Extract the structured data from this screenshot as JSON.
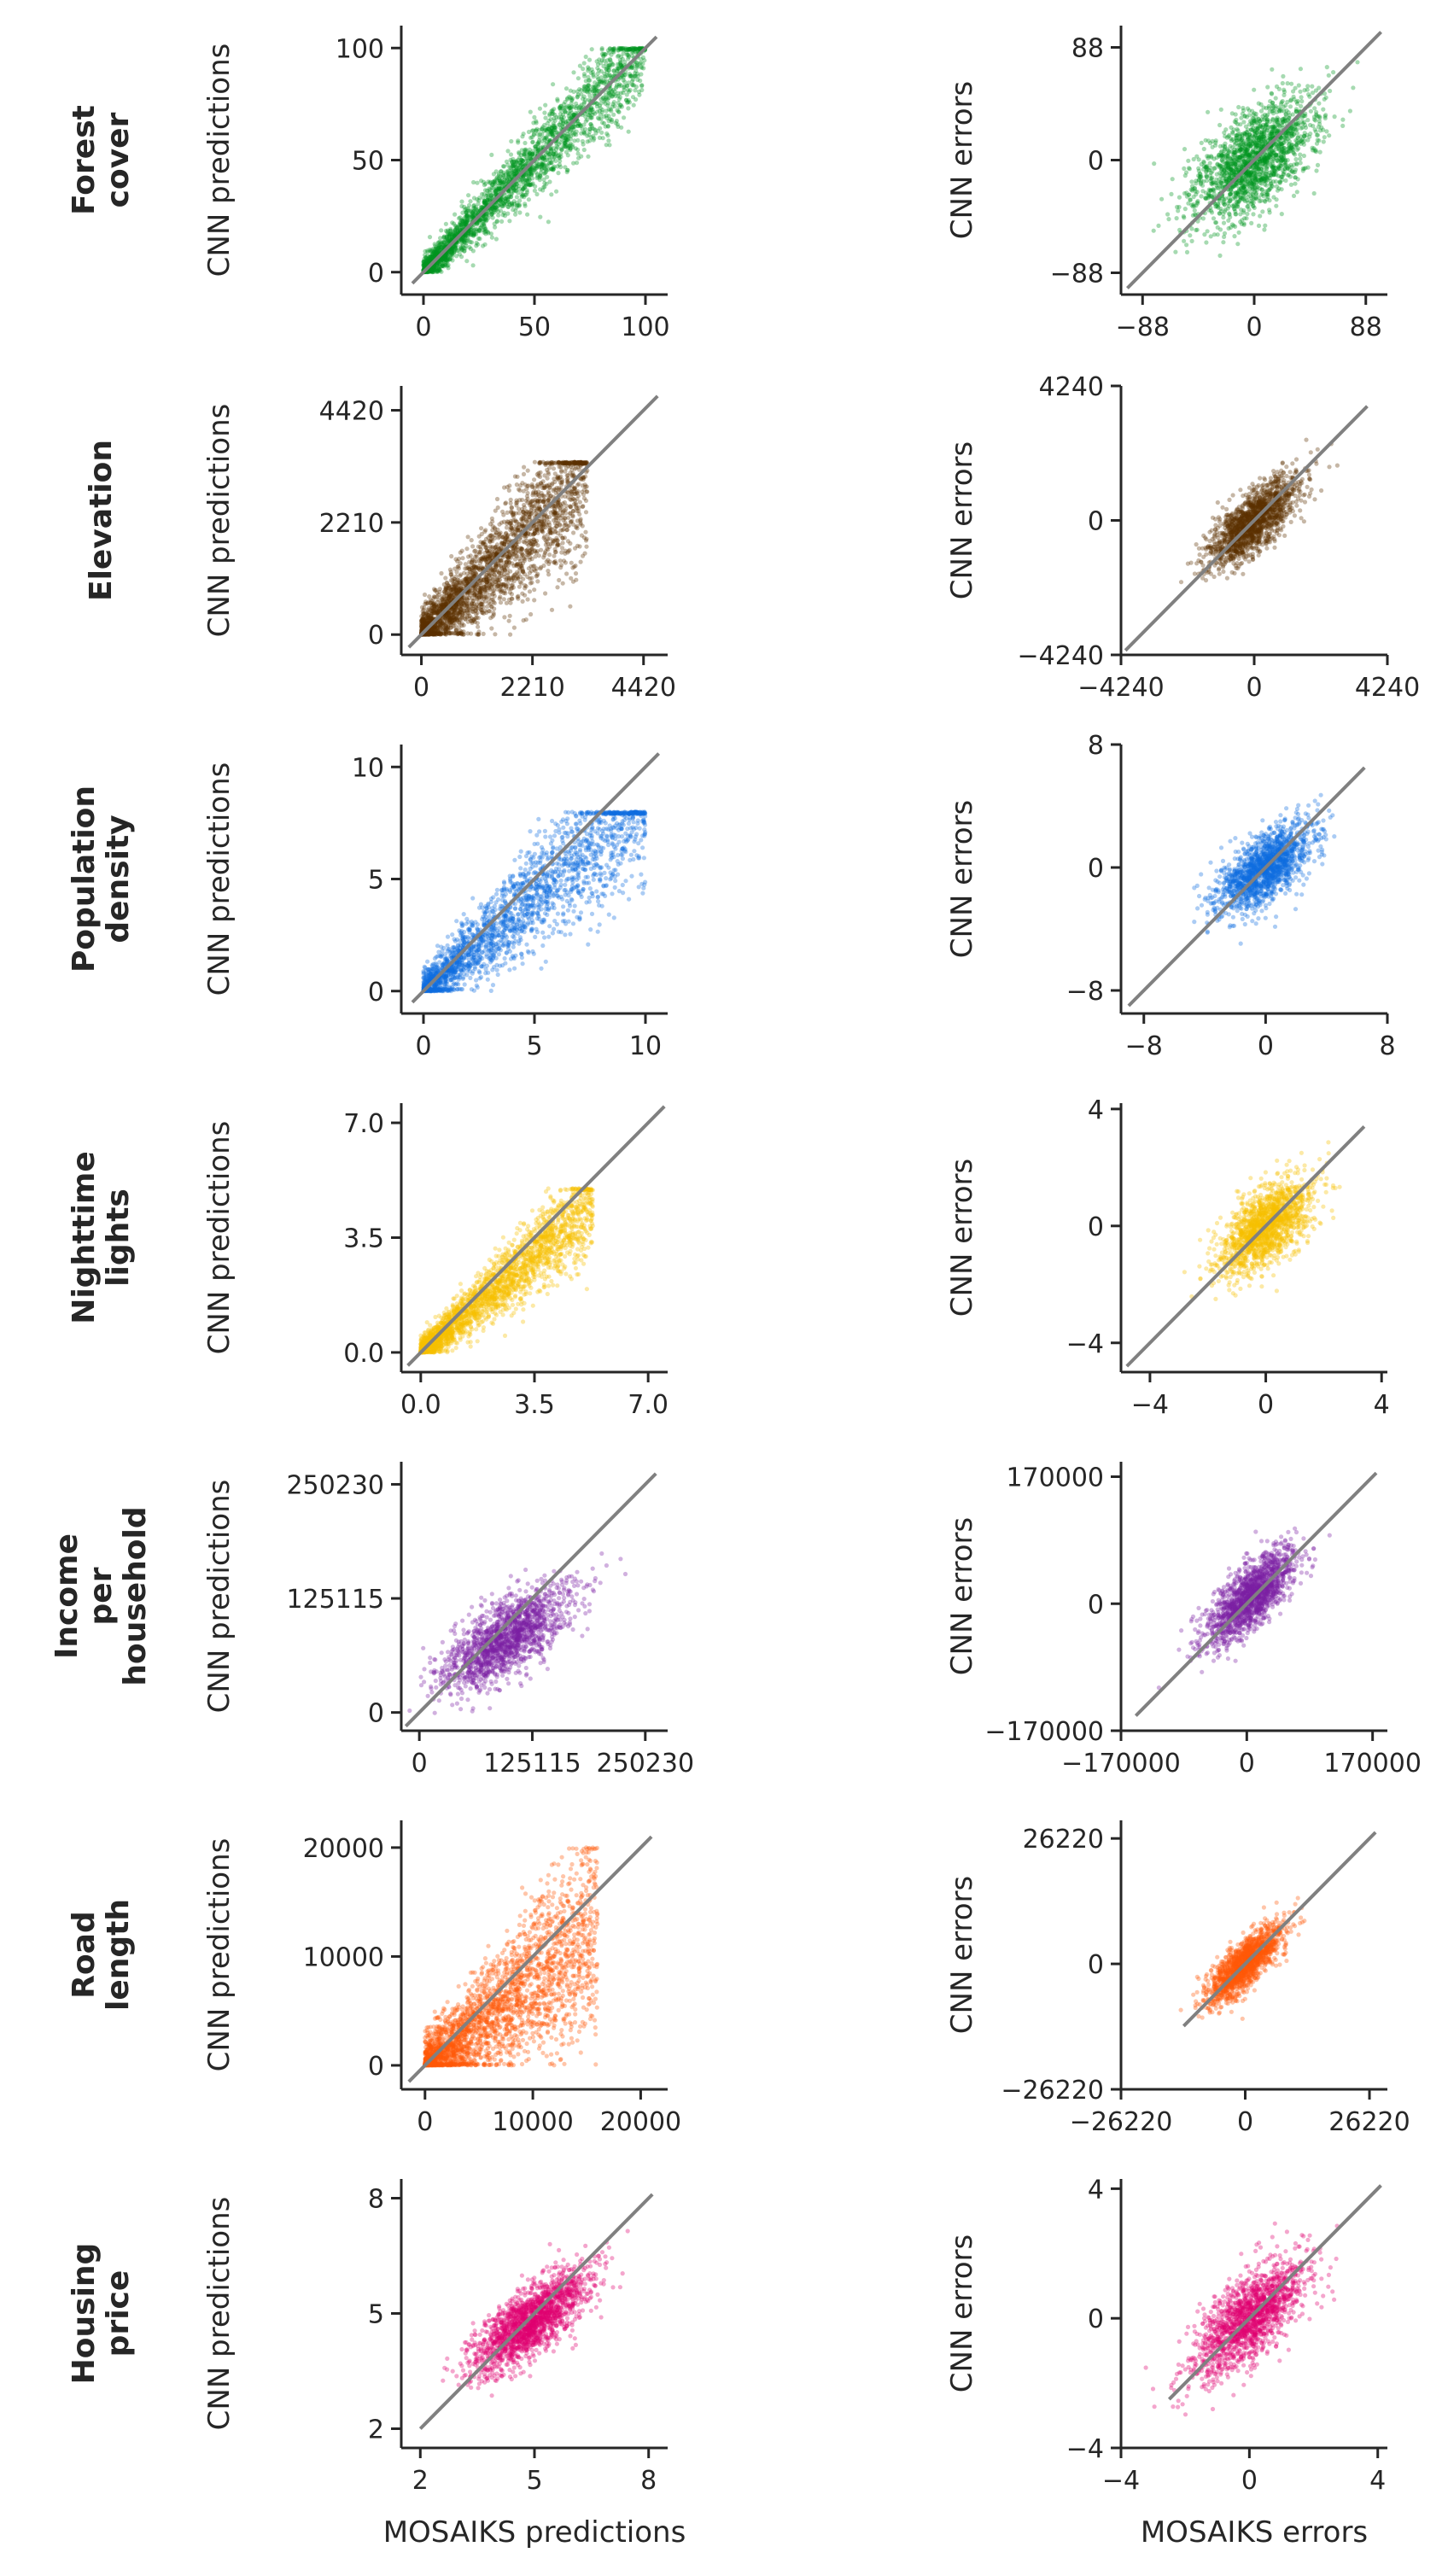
{
  "figure": {
    "xlabel_left": "MOSAIKS predictions",
    "xlabel_right": "MOSAIKS errors",
    "ylabel_left": "CNN predictions",
    "ylabel_right": "CNN errors"
  },
  "chart_data": [
    {
      "type": "scatter",
      "row_label": [
        "Forest",
        "cover"
      ],
      "color": "#00941f",
      "predictions": {
        "title": "",
        "xlabel": "",
        "ylabel": "CNN predictions",
        "xlim": [
          -10,
          110
        ],
        "ylim": [
          -10,
          110
        ],
        "xticks": [
          0,
          50,
          100
        ],
        "xtick_labels": [
          "0",
          "50",
          "100"
        ],
        "yticks": [
          0,
          50,
          100
        ],
        "ytick_labels": [
          "0",
          "50",
          "100"
        ],
        "ref_line": [
          [
            -5,
            -5
          ],
          [
            105,
            105
          ]
        ],
        "cloud": {
          "type": "fan",
          "x_range": [
            0,
            100
          ],
          "y_range": [
            0,
            100
          ],
          "floor": 0,
          "cap": 100,
          "slope": 1.0,
          "spread": 0.12,
          "n": 2600
        }
      },
      "errors": {
        "title": "",
        "xlabel": "",
        "ylabel": "CNN errors",
        "xlim": [
          -105,
          105
        ],
        "ylim": [
          -105,
          105
        ],
        "xticks": [
          -88,
          0,
          88
        ],
        "xtick_labels": [
          "−88",
          "0",
          "88"
        ],
        "yticks": [
          -88,
          0,
          88
        ],
        "ytick_labels": [
          "−88",
          "0",
          "88"
        ],
        "ref_line": [
          [
            -100,
            -100
          ],
          [
            100,
            100
          ]
        ],
        "cloud": {
          "type": "ellipse",
          "center": [
            0,
            0
          ],
          "sx": 24,
          "sy": 24,
          "corr": 0.6,
          "n": 1800
        }
      }
    },
    {
      "type": "scatter",
      "row_label": [
        "Elevation"
      ],
      "color": "#5c3200",
      "predictions": {
        "title": "",
        "xlabel": "",
        "ylabel": "CNN predictions",
        "xlim": [
          -400,
          4900
        ],
        "ylim": [
          -400,
          4900
        ],
        "xticks": [
          0,
          2210,
          4420
        ],
        "xtick_labels": [
          "0",
          "2210",
          "4420"
        ],
        "yticks": [
          0,
          2210,
          4420
        ],
        "ytick_labels": [
          "0",
          "2210",
          "4420"
        ],
        "ref_line": [
          [
            -250,
            -250
          ],
          [
            4700,
            4700
          ]
        ],
        "cloud": {
          "type": "fan",
          "x_range": [
            0,
            3300
          ],
          "y_range": [
            0,
            3300
          ],
          "floor": 0,
          "cap": 3400,
          "slope": 0.95,
          "spread": 0.25,
          "n": 2600
        }
      },
      "errors": {
        "title": "",
        "xlabel": "",
        "ylabel": "CNN errors",
        "xlim": [
          -4240,
          4240
        ],
        "ylim": [
          -4240,
          4240
        ],
        "xticks": [
          -4240,
          0,
          4240
        ],
        "xtick_labels": [
          "−4240",
          "0",
          "4240"
        ],
        "yticks": [
          -4240,
          0,
          4240
        ],
        "ytick_labels": [
          "−4240",
          "0",
          "4240"
        ],
        "ref_line": [
          [
            -4100,
            -4100
          ],
          [
            3600,
            3600
          ]
        ],
        "cloud": {
          "type": "ellipse",
          "center": [
            0,
            0
          ],
          "sx": 700,
          "sy": 700,
          "corr": 0.75,
          "n": 1600
        }
      }
    },
    {
      "type": "scatter",
      "row_label": [
        "Population",
        "density"
      ],
      "color": "#0d6de0",
      "predictions": {
        "title": "",
        "xlabel": "",
        "ylabel": "CNN predictions",
        "xlim": [
          -1,
          11
        ],
        "ylim": [
          -1,
          11
        ],
        "xticks": [
          0,
          5,
          10
        ],
        "xtick_labels": [
          "0",
          "5",
          "10"
        ],
        "yticks": [
          0,
          5,
          10
        ],
        "ytick_labels": [
          "0",
          "5",
          "10"
        ],
        "ref_line": [
          [
            -0.5,
            -0.5
          ],
          [
            10.6,
            10.6
          ]
        ],
        "cloud": {
          "type": "fan",
          "x_range": [
            0,
            10
          ],
          "y_range": [
            0,
            8
          ],
          "floor": 0,
          "cap": 8,
          "slope": 0.85,
          "spread": 0.18,
          "n": 2200
        }
      },
      "errors": {
        "title": "",
        "xlabel": "",
        "ylabel": "CNN errors",
        "xlim": [
          -9.5,
          8
        ],
        "ylim": [
          -9.5,
          8
        ],
        "xticks": [
          -8,
          0,
          8
        ],
        "xtick_labels": [
          "−8",
          "0",
          "8"
        ],
        "yticks": [
          -8,
          0,
          8
        ],
        "ytick_labels": [
          "−8",
          "0",
          "8"
        ],
        "ref_line": [
          [
            -9,
            -9
          ],
          [
            6.5,
            6.5
          ]
        ],
        "cloud": {
          "type": "ellipse",
          "center": [
            0,
            0
          ],
          "sx": 1.5,
          "sy": 1.4,
          "corr": 0.65,
          "n": 1600
        }
      }
    },
    {
      "type": "scatter",
      "row_label": [
        "Nighttime",
        "lights"
      ],
      "color": "#f7c100",
      "predictions": {
        "title": "",
        "xlabel": "",
        "ylabel": "CNN predictions",
        "xlim": [
          -0.6,
          7.6
        ],
        "ylim": [
          -0.6,
          7.6
        ],
        "xticks": [
          0,
          3.5,
          7
        ],
        "xtick_labels": [
          "0.0",
          "3.5",
          "7.0"
        ],
        "yticks": [
          0,
          3.5,
          7
        ],
        "ytick_labels": [
          "0.0",
          "3.5",
          "7.0"
        ],
        "ref_line": [
          [
            -0.4,
            -0.4
          ],
          [
            7.5,
            7.5
          ]
        ],
        "cloud": {
          "type": "fan",
          "x_range": [
            0,
            5.3
          ],
          "y_range": [
            0,
            5
          ],
          "floor": 0,
          "cap": 5,
          "slope": 0.85,
          "spread": 0.15,
          "n": 2400
        }
      },
      "errors": {
        "title": "",
        "xlabel": "",
        "ylabel": "CNN errors",
        "xlim": [
          -5,
          4.2
        ],
        "ylim": [
          -5,
          4.2
        ],
        "xticks": [
          -4,
          0,
          4
        ],
        "xtick_labels": [
          "−4",
          "0",
          "4"
        ],
        "yticks": [
          -4,
          0,
          4
        ],
        "ytick_labels": [
          "−4",
          "0",
          "4"
        ],
        "ref_line": [
          [
            -4.8,
            -4.8
          ],
          [
            3.4,
            3.4
          ]
        ],
        "cloud": {
          "type": "ellipse",
          "center": [
            0,
            0
          ],
          "sx": 0.8,
          "sy": 0.8,
          "corr": 0.6,
          "n": 1600
        }
      }
    },
    {
      "type": "scatter",
      "row_label": [
        "Income",
        "per",
        "household"
      ],
      "color": "#7b1fa2",
      "predictions": {
        "title": "",
        "xlabel": "",
        "ylabel": "CNN predictions",
        "xlim": [
          -20000,
          275000
        ],
        "ylim": [
          -20000,
          275000
        ],
        "xticks": [
          0,
          125115,
          250230
        ],
        "xtick_labels": [
          "0",
          "125115",
          "250230"
        ],
        "yticks": [
          0,
          125115,
          250230
        ],
        "ytick_labels": [
          "0",
          "125115",
          "250230"
        ],
        "ref_line": [
          [
            -15000,
            -15000
          ],
          [
            262000,
            262000
          ]
        ],
        "cloud": {
          "type": "ellipse",
          "center": [
            95000,
            80000
          ],
          "sx": 35000,
          "sy": 28000,
          "corr": 0.7,
          "n": 1600
        }
      },
      "errors": {
        "title": "",
        "xlabel": "",
        "ylabel": "CNN errors",
        "xlim": [
          -170000,
          190000
        ],
        "ylim": [
          -170000,
          190000
        ],
        "xticks": [
          -170000,
          0,
          170000
        ],
        "xtick_labels": [
          "−170000",
          "0",
          "170000"
        ],
        "yticks": [
          -170000,
          0,
          170000
        ],
        "ytick_labels": [
          "−170000",
          "0",
          "170000"
        ],
        "ref_line": [
          [
            -150000,
            -150000
          ],
          [
            175000,
            175000
          ]
        ],
        "cloud": {
          "type": "ellipse",
          "center": [
            5000,
            10000
          ],
          "sx": 30000,
          "sy": 32000,
          "corr": 0.75,
          "n": 1600
        }
      }
    },
    {
      "type": "scatter",
      "row_label": [
        "Road",
        "length"
      ],
      "color": "#ff5a0a",
      "predictions": {
        "title": "",
        "xlabel": "",
        "ylabel": "CNN predictions",
        "xlim": [
          -2200,
          22500
        ],
        "ylim": [
          -2200,
          22500
        ],
        "xticks": [
          0,
          10000,
          20000
        ],
        "xtick_labels": [
          "0",
          "10000",
          "20000"
        ],
        "yticks": [
          0,
          10000,
          20000
        ],
        "ytick_labels": [
          "0",
          "10000",
          "20000"
        ],
        "ref_line": [
          [
            -1500,
            -1500
          ],
          [
            21000,
            21000
          ]
        ],
        "cloud": {
          "type": "fan",
          "x_range": [
            0,
            16000
          ],
          "y_range": [
            0,
            20000
          ],
          "floor": 0,
          "cap": 20000,
          "slope": 0.75,
          "spread": 0.3,
          "n": 2600
        }
      },
      "errors": {
        "title": "",
        "xlabel": "",
        "ylabel": "CNN errors",
        "xlim": [
          -26220,
          30000
        ],
        "ylim": [
          -26220,
          30000
        ],
        "xticks": [
          -26220,
          0,
          26220
        ],
        "xtick_labels": [
          "−26220",
          "0",
          "26220"
        ],
        "yticks": [
          -26220,
          0,
          26220
        ],
        "ytick_labels": [
          "−26220",
          "0",
          "26220"
        ],
        "ref_line": [
          [
            -13000,
            -13000
          ],
          [
            27500,
            27500
          ]
        ],
        "cloud": {
          "type": "ellipse",
          "center": [
            0,
            0
          ],
          "sx": 4000,
          "sy": 4000,
          "corr": 0.8,
          "n": 1600
        }
      }
    },
    {
      "type": "scatter",
      "row_label": [
        "Housing",
        "price"
      ],
      "color": "#e00070",
      "predictions": {
        "title": "",
        "xlabel": "MOSAIKS predictions",
        "ylabel": "CNN predictions",
        "xlim": [
          1.5,
          8.5
        ],
        "ylim": [
          1.5,
          8.5
        ],
        "xticks": [
          2,
          5,
          8
        ],
        "xtick_labels": [
          "2",
          "5",
          "8"
        ],
        "yticks": [
          2,
          5,
          8
        ],
        "ytick_labels": [
          "2",
          "5",
          "8"
        ],
        "ref_line": [
          [
            2.0,
            2.0
          ],
          [
            8.1,
            8.1
          ]
        ],
        "cloud": {
          "type": "ellipse",
          "center": [
            4.9,
            4.8
          ],
          "sx": 0.75,
          "sy": 0.65,
          "corr": 0.75,
          "n": 1800
        }
      },
      "errors": {
        "title": "",
        "xlabel": "MOSAIKS errors",
        "ylabel": "CNN errors",
        "xlim": [
          -4,
          4.3
        ],
        "ylim": [
          -4,
          4.3
        ],
        "xticks": [
          -4,
          0,
          4
        ],
        "xtick_labels": [
          "−4",
          "0",
          "4"
        ],
        "yticks": [
          -4,
          0,
          4
        ],
        "ytick_labels": [
          "−4",
          "0",
          "4"
        ],
        "ref_line": [
          [
            -2.5,
            -2.5
          ],
          [
            4.1,
            4.1
          ]
        ],
        "cloud": {
          "type": "ellipse",
          "center": [
            0,
            0
          ],
          "sx": 0.9,
          "sy": 0.9,
          "corr": 0.7,
          "n": 1600
        }
      }
    }
  ]
}
